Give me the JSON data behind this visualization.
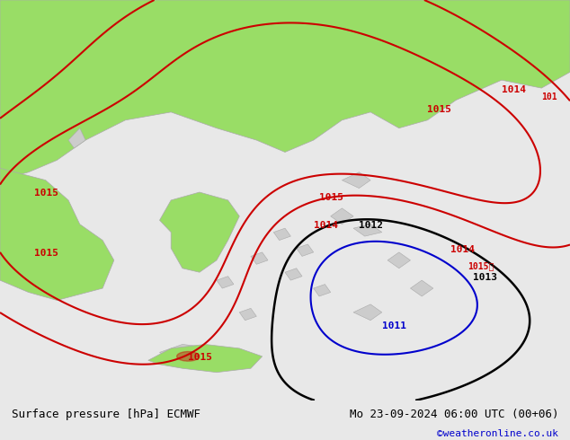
{
  "title_left": "Surface pressure [hPa] ECMWF",
  "title_right": "Mo 23-09-2024 06:00 UTC (00+06)",
  "credit": "©weatheronline.co.uk",
  "credit_color": "#0000cc",
  "bg_color": "#e8e8e8",
  "land_color": "#99dd66",
  "sea_color": "#e8e8e8",
  "island_color": "#cccccc",
  "contour_red_color": "#cc0000",
  "contour_black_color": "#000000",
  "contour_blue_color": "#0000cc",
  "label_red_color": "#cc0000",
  "label_black_color": "#000000",
  "label_blue_color": "#0000cc",
  "figsize": [
    6.34,
    4.9
  ],
  "dpi": 100,
  "label_fontsize": 8,
  "label_fontsize_small": 7,
  "label_fontsize_credit": 8,
  "label_fontsize_title": 9
}
